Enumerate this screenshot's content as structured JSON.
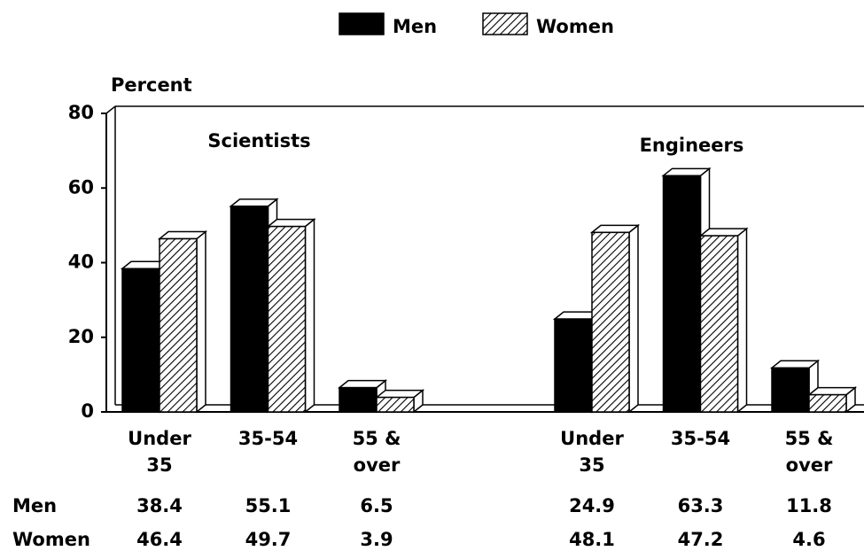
{
  "chart_data": {
    "type": "bar",
    "y_label": "Percent",
    "group_labels": [
      "Scientists",
      "Engineers"
    ],
    "categories": [
      "Under 35",
      "35-54",
      "55 & over",
      "Under 35",
      "35-54",
      "55 & over"
    ],
    "series": [
      {
        "name": "Men",
        "color": "#000000",
        "values": [
          38.4,
          55.1,
          6.5,
          24.9,
          63.3,
          11.8
        ]
      },
      {
        "name": "Women",
        "color": "#000000",
        "pattern": "hatch",
        "values": [
          46.4,
          49.7,
          3.9,
          48.1,
          47.2,
          4.6
        ]
      }
    ],
    "ylim": [
      0,
      80
    ],
    "yticks": [
      0,
      20,
      40,
      60,
      80
    ]
  }
}
